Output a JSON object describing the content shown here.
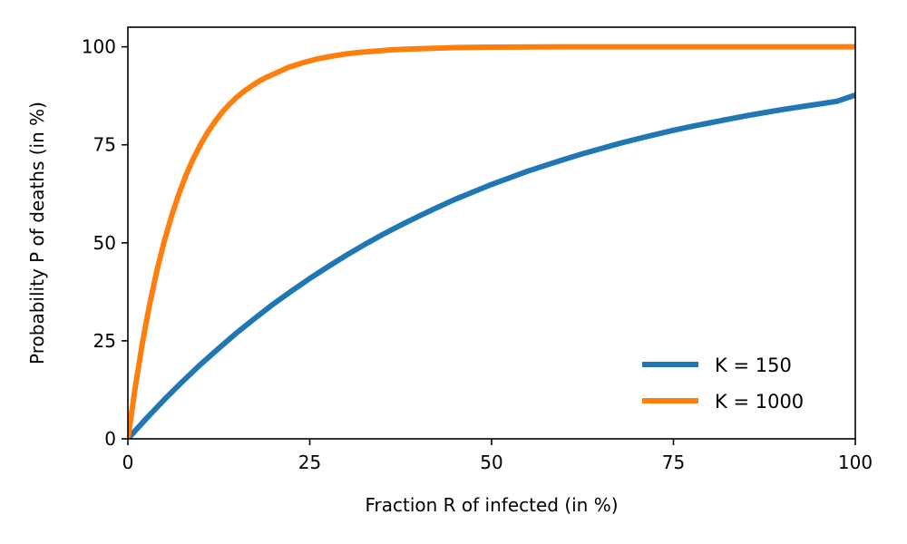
{
  "chart_data": {
    "type": "line",
    "title": "",
    "xlabel": "Fraction R of infected (in %)",
    "ylabel": "Probability P of deaths (in %)",
    "xlim": [
      0,
      100
    ],
    "ylim": [
      0,
      105
    ],
    "xticks": [
      0,
      25,
      50,
      75,
      100
    ],
    "yticks": [
      0,
      25,
      50,
      75,
      100
    ],
    "grid": false,
    "legend_position": "bottom-right",
    "series": [
      {
        "name": "K = 150",
        "color": "#1f77b4",
        "x": [
          0,
          2.5,
          5,
          7.5,
          10,
          12.5,
          15,
          17.5,
          20,
          22.5,
          25,
          27.5,
          30,
          32.5,
          35,
          37.5,
          40,
          42.5,
          45,
          47.5,
          50,
          52.5,
          55,
          57.5,
          60,
          62.5,
          65,
          67.5,
          70,
          72.5,
          75,
          77.5,
          80,
          82.5,
          85,
          87.5,
          90,
          92.5,
          95,
          97.5,
          100
        ],
        "y": [
          0,
          5.1,
          10.0,
          14.6,
          19.0,
          23.1,
          27.1,
          30.8,
          34.4,
          37.7,
          40.9,
          43.9,
          46.8,
          49.5,
          52.1,
          54.5,
          56.8,
          59.0,
          61.1,
          63.0,
          64.9,
          66.6,
          68.3,
          69.8,
          71.3,
          72.7,
          74.0,
          75.3,
          76.5,
          77.6,
          78.7,
          79.7,
          80.6,
          81.5,
          82.4,
          83.2,
          84.0,
          84.7,
          85.4,
          86.1,
          87.7
        ]
      },
      {
        "name": "K = 1000",
        "color": "#ff7f0e",
        "x": [
          0,
          1,
          2,
          3,
          4,
          5,
          6,
          7,
          8,
          9,
          10,
          11,
          12,
          13,
          14,
          15,
          16,
          17,
          18,
          19,
          20,
          22,
          24,
          26,
          28,
          30,
          32,
          34,
          36,
          38,
          40,
          45,
          50,
          60,
          70,
          80,
          90,
          100
        ],
        "y": [
          0,
          13.0,
          24.5,
          34.4,
          43.0,
          50.4,
          56.8,
          62.4,
          67.3,
          71.5,
          75.1,
          78.3,
          81.0,
          83.4,
          85.4,
          87.2,
          88.7,
          90.0,
          91.2,
          92.2,
          93.0,
          94.7,
          95.9,
          96.9,
          97.6,
          98.2,
          98.6,
          98.9,
          99.2,
          99.4,
          99.5,
          99.8,
          99.9,
          100,
          100,
          100,
          100,
          100
        ]
      }
    ]
  }
}
